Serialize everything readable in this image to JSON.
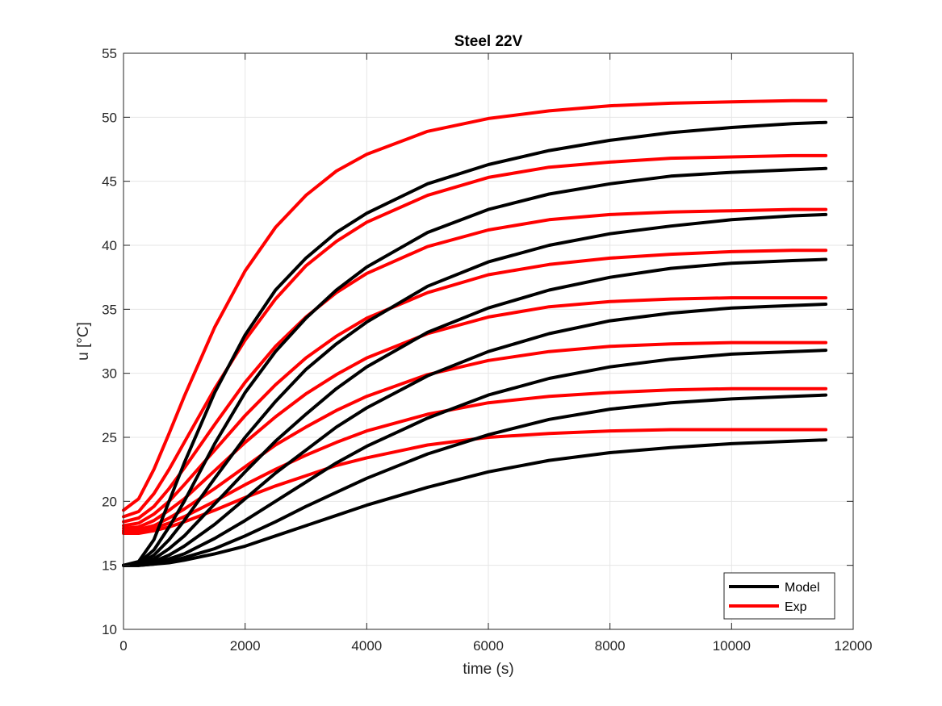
{
  "chart_data": {
    "type": "line",
    "title": "Steel 22V",
    "xlabel": "time (s)",
    "ylabel": "u [°C]",
    "xlim": [
      0,
      12000
    ],
    "ylim": [
      10,
      55
    ],
    "xticks": [
      "0",
      "2000",
      "4000",
      "6000",
      "8000",
      "10000",
      "12000"
    ],
    "yticks": [
      "10",
      "15",
      "20",
      "25",
      "30",
      "35",
      "40",
      "45",
      "50",
      "55"
    ],
    "grid": true,
    "legend_position": "bottom-right",
    "legend": [
      {
        "label": "Model",
        "color": "#000000"
      },
      {
        "label": "Exp",
        "color": "#ff0000"
      }
    ],
    "x": [
      0,
      250,
      500,
      750,
      1000,
      1500,
      2000,
      2500,
      3000,
      3500,
      4000,
      5000,
      6000,
      7000,
      8000,
      9000,
      10000,
      11000,
      11550
    ],
    "series": [
      {
        "group": "Model",
        "color": "#000000",
        "values": [
          15.0,
          15.3,
          17.0,
          20.0,
          23.0,
          28.5,
          33.0,
          36.5,
          39.0,
          41.0,
          42.5,
          44.8,
          46.3,
          47.4,
          48.2,
          48.8,
          49.2,
          49.5,
          49.6
        ]
      },
      {
        "group": "Model",
        "color": "#000000",
        "values": [
          15.0,
          15.2,
          16.2,
          18.0,
          20.0,
          24.5,
          28.5,
          31.7,
          34.3,
          36.5,
          38.3,
          41.0,
          42.8,
          44.0,
          44.8,
          45.4,
          45.7,
          45.9,
          46.0
        ]
      },
      {
        "group": "Model",
        "color": "#000000",
        "values": [
          15.0,
          15.1,
          15.8,
          17.0,
          18.5,
          21.8,
          25.0,
          27.8,
          30.3,
          32.3,
          34.0,
          36.8,
          38.7,
          40.0,
          40.9,
          41.5,
          42.0,
          42.3,
          42.4
        ]
      },
      {
        "group": "Model",
        "color": "#000000",
        "values": [
          15.0,
          15.1,
          15.5,
          16.3,
          17.3,
          19.8,
          22.3,
          24.7,
          26.8,
          28.8,
          30.5,
          33.2,
          35.1,
          36.5,
          37.5,
          38.2,
          38.6,
          38.8,
          38.9
        ]
      },
      {
        "group": "Model",
        "color": "#000000",
        "values": [
          15.0,
          15.1,
          15.3,
          15.8,
          16.5,
          18.2,
          20.2,
          22.2,
          24.0,
          25.8,
          27.3,
          29.8,
          31.7,
          33.1,
          34.1,
          34.7,
          35.1,
          35.3,
          35.4
        ]
      },
      {
        "group": "Model",
        "color": "#000000",
        "values": [
          15.0,
          15.0,
          15.2,
          15.5,
          15.9,
          17.1,
          18.5,
          20.0,
          21.5,
          23.0,
          24.3,
          26.5,
          28.3,
          29.6,
          30.5,
          31.1,
          31.5,
          31.7,
          31.8
        ]
      },
      {
        "group": "Model",
        "color": "#000000",
        "values": [
          15.0,
          15.0,
          15.1,
          15.3,
          15.6,
          16.3,
          17.3,
          18.4,
          19.6,
          20.7,
          21.8,
          23.7,
          25.2,
          26.4,
          27.2,
          27.7,
          28.0,
          28.2,
          28.3
        ]
      },
      {
        "group": "Model",
        "color": "#000000",
        "values": [
          15.0,
          15.0,
          15.1,
          15.2,
          15.4,
          15.9,
          16.5,
          17.3,
          18.1,
          18.9,
          19.7,
          21.1,
          22.3,
          23.2,
          23.8,
          24.2,
          24.5,
          24.7,
          24.8
        ]
      },
      {
        "group": "Exp",
        "color": "#ff0000",
        "values": [
          19.3,
          20.2,
          22.5,
          25.3,
          28.2,
          33.6,
          38.0,
          41.4,
          43.9,
          45.8,
          47.1,
          48.9,
          49.9,
          50.5,
          50.9,
          51.1,
          51.2,
          51.3,
          51.3
        ]
      },
      {
        "group": "Exp",
        "color": "#ff0000",
        "values": [
          18.8,
          19.2,
          20.6,
          22.5,
          24.6,
          28.8,
          32.6,
          35.8,
          38.4,
          40.3,
          41.8,
          43.9,
          45.3,
          46.1,
          46.5,
          46.8,
          46.9,
          47.0,
          47.0
        ]
      },
      {
        "group": "Exp",
        "color": "#ff0000",
        "values": [
          18.4,
          18.7,
          19.6,
          21.0,
          22.6,
          26.0,
          29.3,
          32.1,
          34.4,
          36.3,
          37.8,
          39.9,
          41.2,
          42.0,
          42.4,
          42.6,
          42.7,
          42.8,
          42.8
        ]
      },
      {
        "group": "Exp",
        "color": "#ff0000",
        "values": [
          18.1,
          18.3,
          19.0,
          20.0,
          21.3,
          24.0,
          26.7,
          29.1,
          31.2,
          32.9,
          34.3,
          36.3,
          37.7,
          38.5,
          39.0,
          39.3,
          39.5,
          39.6,
          39.6
        ]
      },
      {
        "group": "Exp",
        "color": "#ff0000",
        "values": [
          17.9,
          18.0,
          18.5,
          19.3,
          20.2,
          22.4,
          24.6,
          26.6,
          28.4,
          29.9,
          31.2,
          33.1,
          34.4,
          35.2,
          35.6,
          35.8,
          35.9,
          35.9,
          35.9
        ]
      },
      {
        "group": "Exp",
        "color": "#ff0000",
        "values": [
          17.7,
          17.8,
          18.1,
          18.7,
          19.4,
          21.0,
          22.7,
          24.4,
          25.8,
          27.1,
          28.2,
          29.9,
          31.0,
          31.7,
          32.1,
          32.3,
          32.4,
          32.4,
          32.4
        ]
      },
      {
        "group": "Exp",
        "color": "#ff0000",
        "values": [
          17.6,
          17.7,
          17.9,
          18.3,
          18.8,
          20.0,
          21.3,
          22.5,
          23.6,
          24.6,
          25.5,
          26.8,
          27.7,
          28.2,
          28.5,
          28.7,
          28.8,
          28.8,
          28.8
        ]
      },
      {
        "group": "Exp",
        "color": "#ff0000",
        "values": [
          17.5,
          17.5,
          17.7,
          18.0,
          18.4,
          19.3,
          20.3,
          21.2,
          22.0,
          22.8,
          23.4,
          24.4,
          25.0,
          25.3,
          25.5,
          25.6,
          25.6,
          25.6,
          25.6
        ]
      }
    ]
  }
}
